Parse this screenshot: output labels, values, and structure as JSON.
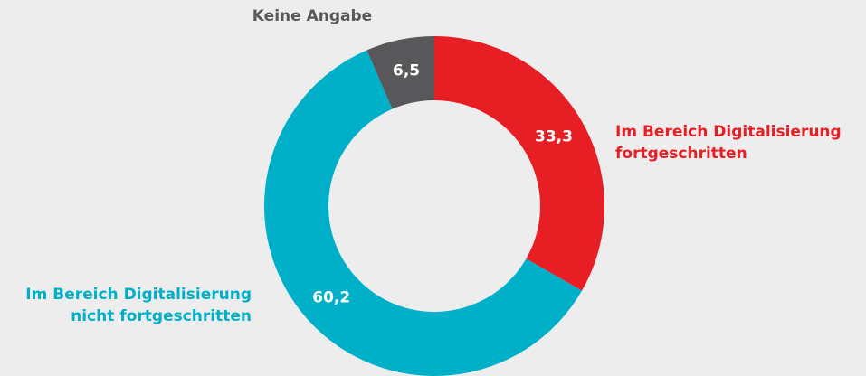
{
  "chart_data": {
    "type": "pie",
    "donut": true,
    "categories": [
      "Im Bereich Digitalisierung fortgeschritten",
      "Im Bereich Digitalisierung nicht fortgeschritten",
      "Keine Angabe"
    ],
    "values": [
      33.3,
      60.2,
      6.5
    ],
    "value_labels": [
      "33,3",
      "60,2",
      "6,5"
    ],
    "colors": [
      "#e81e25",
      "#00b0c8",
      "#58585a"
    ]
  }
}
